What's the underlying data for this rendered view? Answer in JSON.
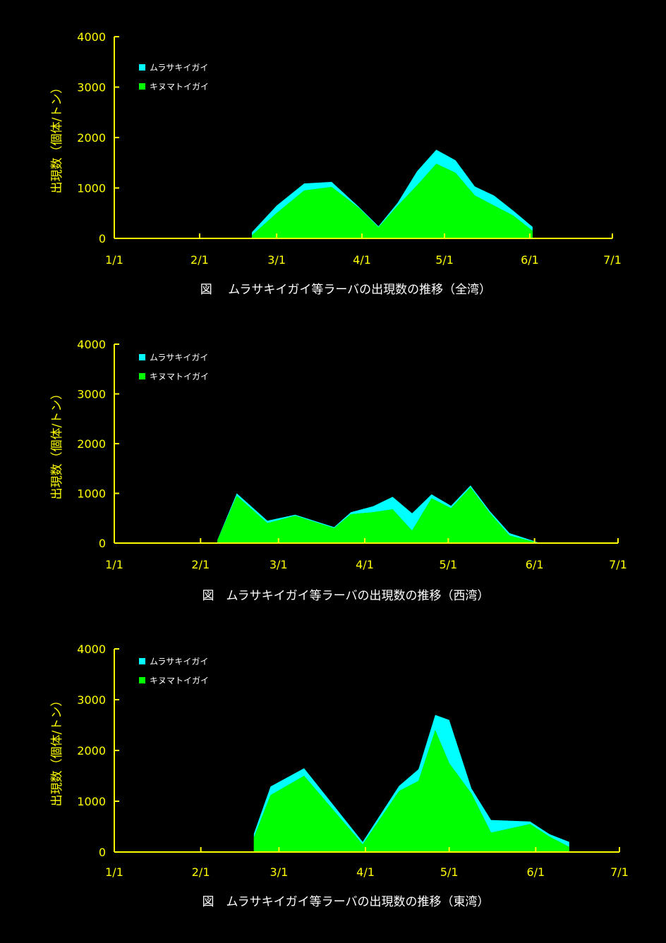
{
  "colors": {
    "background": "#000000",
    "axis": "#ffff00",
    "murasaki": "#00ffff",
    "kinu": "#00ff00",
    "caption": "#ffffff"
  },
  "chart_data": [
    {
      "type": "area",
      "stacked": true,
      "caption": "図　 ムラサキイガイ等ラーバの出現数の推移（全湾）",
      "ylabel": "出現数（個体/トン）",
      "ylim": [
        0,
        4000
      ],
      "yticks": [
        "0",
        "1000",
        "2000",
        "3000",
        "4000"
      ],
      "xticks": [
        "1/1",
        "2/1",
        "3/1",
        "4/1",
        "5/1",
        "6/1",
        "7/1"
      ],
      "legend_position": "top-left",
      "x": [
        "2/20",
        "3/1",
        "3/11",
        "3/21",
        "3/31",
        "4/7",
        "4/14",
        "4/21",
        "4/28",
        "5/5",
        "5/12",
        "5/19",
        "5/26",
        "6/2"
      ],
      "series": [
        {
          "name": "キヌマトイガイ",
          "values": [
            60,
            500,
            950,
            1020,
            600,
            220,
            650,
            1050,
            1480,
            1300,
            850,
            650,
            450,
            150
          ]
        },
        {
          "name": "ムラサキイガイ",
          "values": [
            60,
            150,
            140,
            100,
            20,
            20,
            60,
            280,
            280,
            250,
            180,
            200,
            100,
            80
          ]
        }
      ]
    },
    {
      "type": "area",
      "stacked": true,
      "caption": "図　ムラサキイガイ等ラーバの出現数の推移（西湾）",
      "ylabel": "出現数（個体/トン）",
      "ylim": [
        0,
        4000
      ],
      "yticks": [
        "0",
        "1000",
        "2000",
        "3000",
        "4000"
      ],
      "xticks": [
        "1/1",
        "2/1",
        "3/1",
        "4/1",
        "5/1",
        "6/1",
        "7/1"
      ],
      "legend_position": "top-left",
      "x": [
        "2/7",
        "2/14",
        "2/25",
        "3/7",
        "3/21",
        "3/27",
        "4/4",
        "4/11",
        "4/18",
        "4/25",
        "5/2",
        "5/9",
        "5/16",
        "5/23",
        "6/2"
      ],
      "series": [
        {
          "name": "キヌマトイガイ",
          "values": [
            50,
            950,
            400,
            550,
            300,
            580,
            620,
            680,
            250,
            900,
            700,
            1120,
            600,
            150,
            10
          ]
        },
        {
          "name": "ムラサキイガイ",
          "values": [
            10,
            50,
            50,
            20,
            20,
            40,
            120,
            250,
            350,
            80,
            50,
            40,
            40,
            50,
            10
          ]
        }
      ]
    },
    {
      "type": "area",
      "stacked": true,
      "caption": "図　ムラサキイガイ等ラーバの出現数の推移（東湾）",
      "ylabel": "出現数（個体/トン）",
      "ylim": [
        0,
        4000
      ],
      "yticks": [
        "0",
        "1000",
        "2000",
        "3000",
        "4000"
      ],
      "xticks": [
        "1/1",
        "2/1",
        "3/1",
        "4/1",
        "5/1",
        "6/1",
        "7/1"
      ],
      "legend_position": "top-left",
      "x": [
        "2/20",
        "2/26",
        "3/10",
        "3/31",
        "4/13",
        "4/20",
        "4/26",
        "5/1",
        "5/9",
        "5/16",
        "5/30",
        "6/6",
        "6/13"
      ],
      "series": [
        {
          "name": "キヌマトイガイ",
          "values": [
            280,
            1120,
            1500,
            150,
            1200,
            1400,
            2400,
            1750,
            1150,
            380,
            550,
            300,
            100
          ]
        },
        {
          "name": "ムラサキイガイ",
          "values": [
            80,
            170,
            150,
            50,
            100,
            230,
            300,
            850,
            100,
            250,
            50,
            50,
            100
          ]
        }
      ]
    }
  ]
}
